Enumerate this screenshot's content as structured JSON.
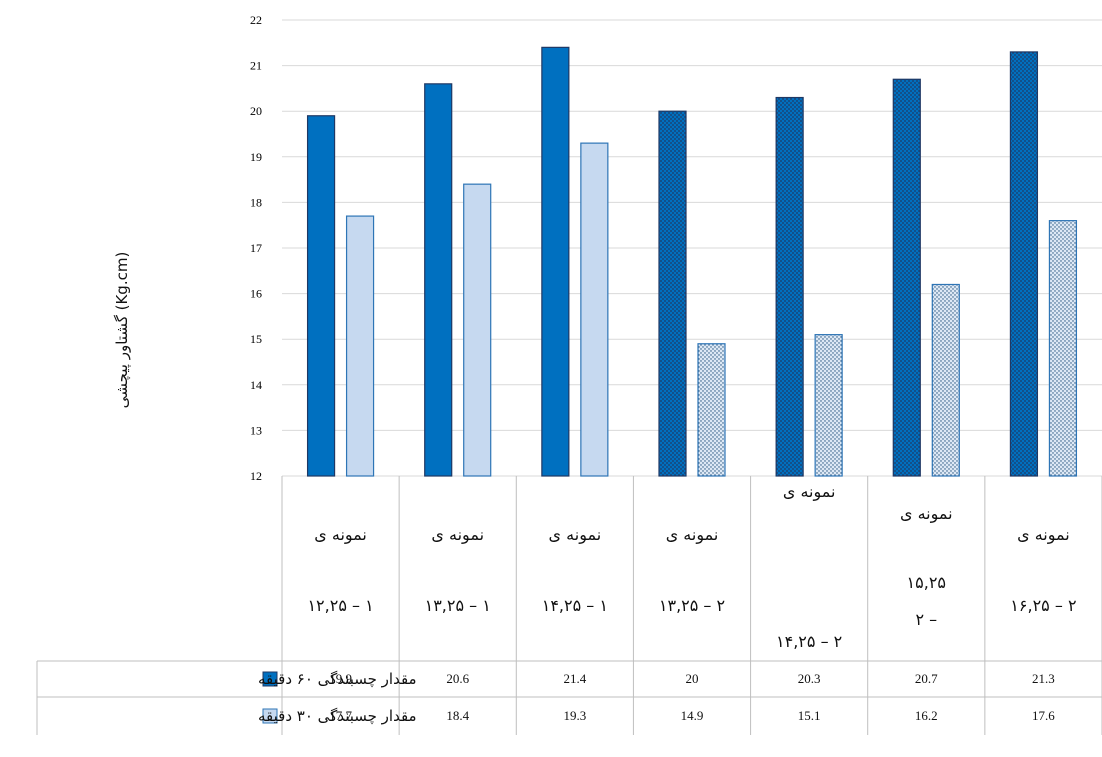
{
  "chart_data": {
    "type": "bar",
    "ylabel": "گشتاور پیچشی (Kg.cm)",
    "ylim": [
      12,
      22
    ],
    "yticks": [
      12,
      13,
      14,
      15,
      16,
      17,
      18,
      19,
      20,
      21,
      22
    ],
    "grid": true,
    "legend": "data-table-left",
    "categories": [
      [
        "نمونه ی",
        "۱ – ۱۲,۲۵"
      ],
      [
        "نمونه ی",
        "۱ – ۱۳,۲۵"
      ],
      [
        "نمونه ی",
        "۱ – ۱۴,۲۵"
      ],
      [
        "نمونه ی",
        "۲ – ۱۳,۲۵"
      ],
      [
        "نمونه ی",
        "۲ – ۱۴,۲۵"
      ],
      [
        "نمونه ی",
        "۱۵,۲۵",
        "– ۲"
      ],
      [
        "نمونه ی",
        "۲ – ۱۶,۲۵"
      ]
    ],
    "series": [
      {
        "name": "مقدار چسبندگی ۶۰ دقیقه",
        "values": [
          19.9,
          20.6,
          21.4,
          20,
          20.3,
          20.7,
          21.3
        ],
        "labels": [
          "19.9",
          "20.6",
          "21.4",
          "20",
          "20.3",
          "20.7",
          "21.3"
        ],
        "color": "#0070c0",
        "pattern_color": "#1f3864"
      },
      {
        "name": "مقدار چسبندگی ۳۰ دقیقه",
        "values": [
          17.7,
          18.4,
          19.3,
          14.9,
          15.1,
          16.2,
          17.6
        ],
        "labels": [
          "17.7",
          "18.4",
          "19.3",
          "14.9",
          "15.1",
          "16.2",
          "17.6"
        ],
        "color": "#c6d9f0",
        "pattern_color": "#1f4e79"
      }
    ],
    "patterned_from_index": 3
  }
}
